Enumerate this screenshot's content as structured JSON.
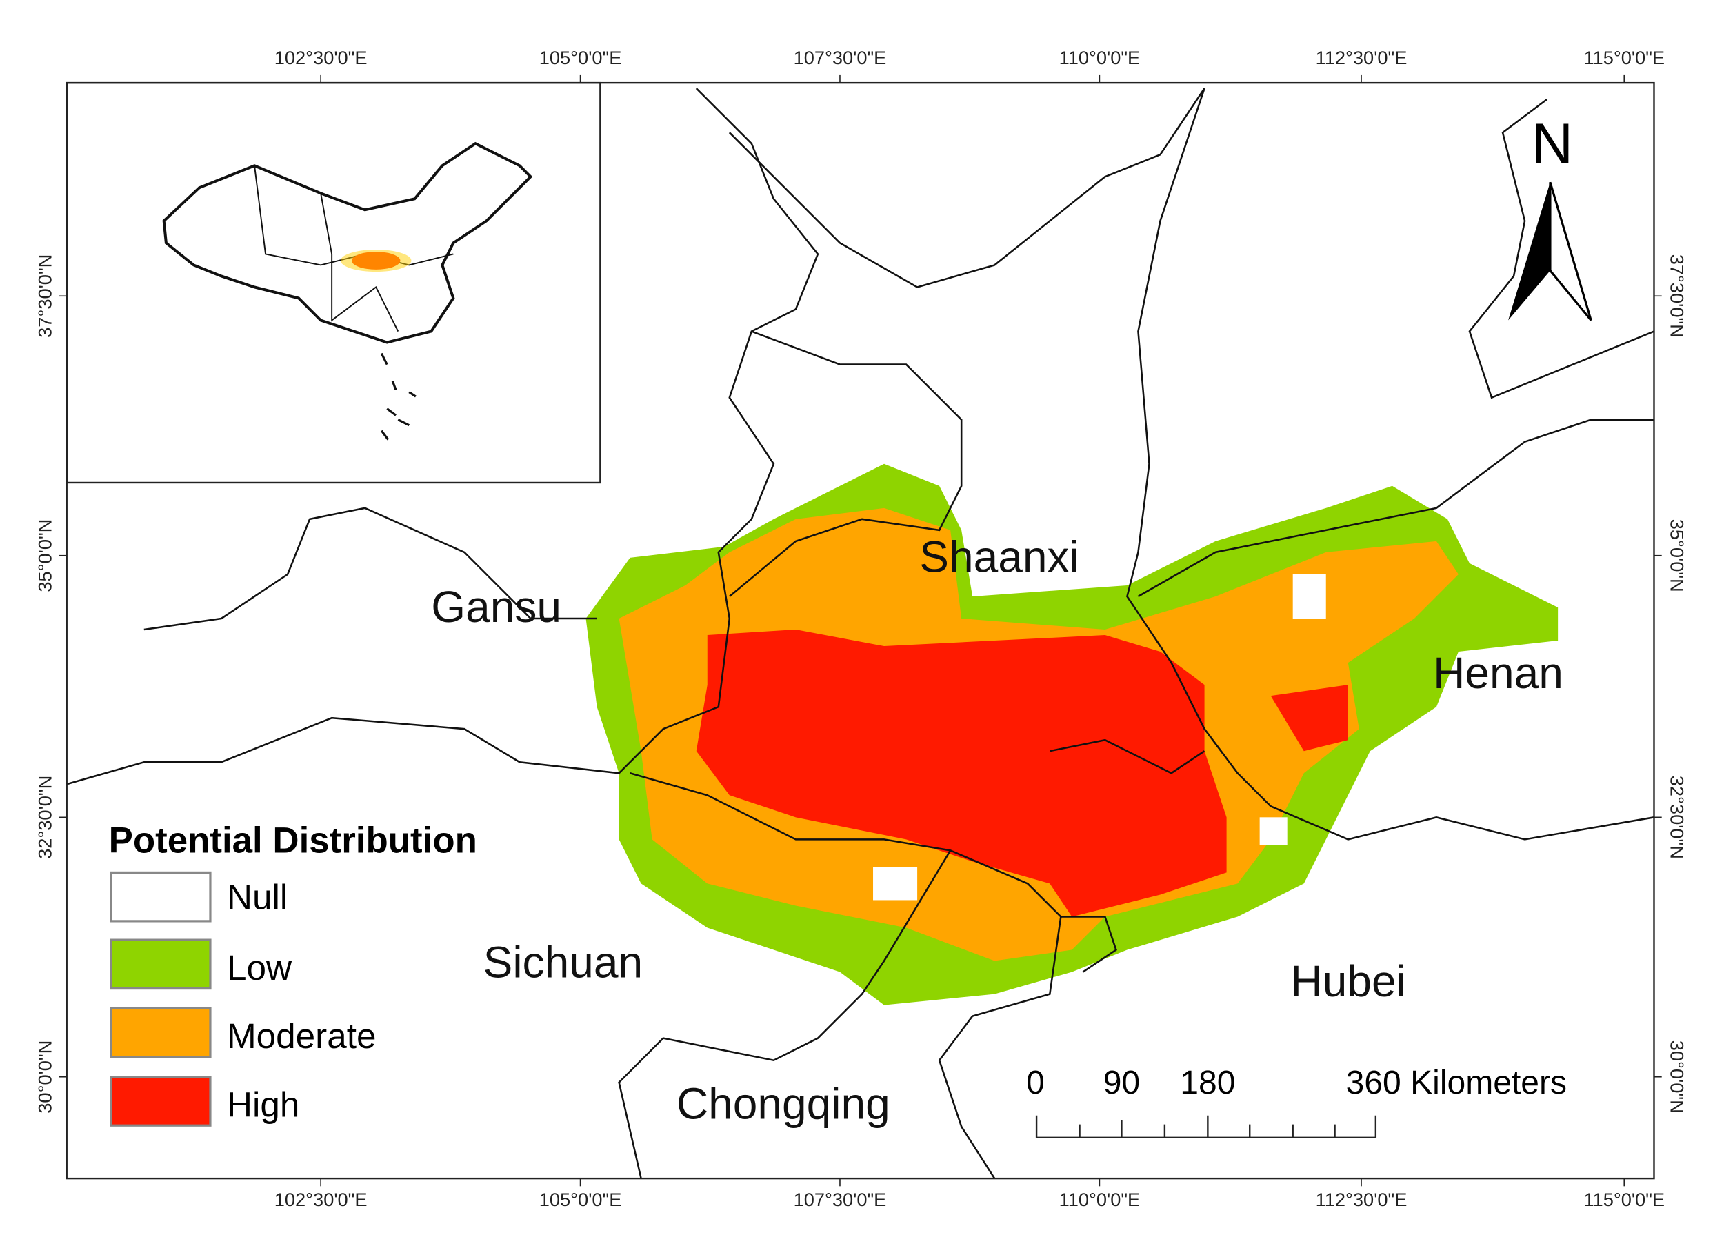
{
  "top_axis": [
    "102°30'0\"E",
    "105°0'0\"E",
    "107°30'0\"E",
    "110°0'0\"E",
    "112°30'0\"E",
    "115°0'0\"E"
  ],
  "bottom_axis": [
    "102°30'0\"E",
    "105°0'0\"E",
    "107°30'0\"E",
    "110°0'0\"E",
    "112°30'0\"E",
    "115°0'0\"E"
  ],
  "left_axis": [
    "37°30'0\"N",
    "35°0'0\"N",
    "32°30'0\"N",
    "30°0'0\"N"
  ],
  "right_axis": [
    "37°30'0\"N",
    "35°0'0\"N",
    "32°30'0\"N",
    "30°0'0\"N"
  ],
  "provinces": [
    "Shaanxi",
    "Gansu",
    "Henan",
    "Sichuan",
    "Hubei",
    "Chongqing"
  ],
  "north": "N",
  "legend": {
    "title": "Potential Distribution",
    "items": [
      "Null",
      "Low",
      "Moderate",
      "High"
    ]
  },
  "scale_bar": [
    "0",
    "90",
    "180",
    "360 Kilometers"
  ]
}
